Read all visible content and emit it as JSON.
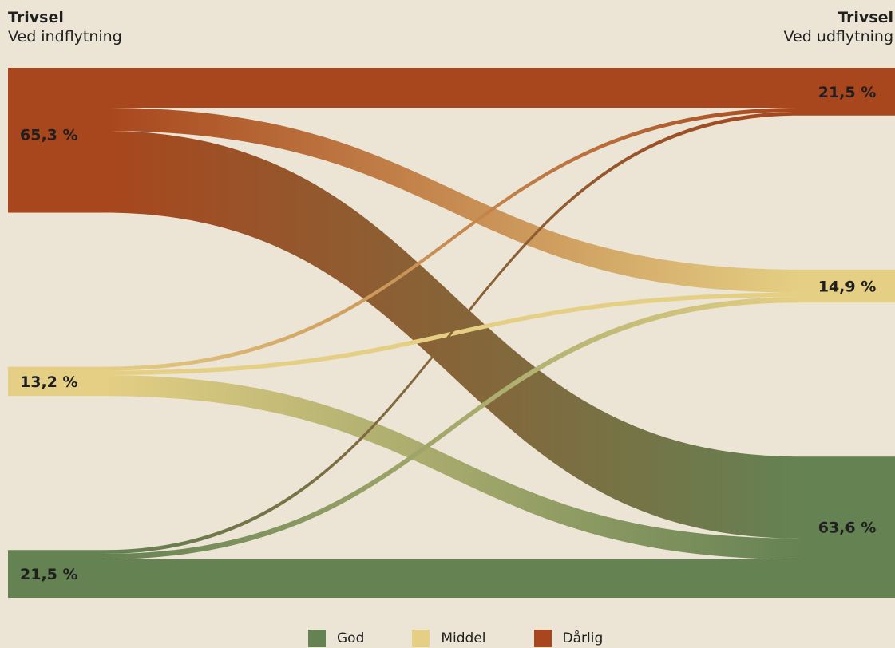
{
  "header": {
    "left_title": "Trivsel",
    "left_subtitle": "Ved indflytning",
    "right_title": "Trivsel",
    "right_subtitle": "Ved udflytning"
  },
  "legend": [
    {
      "label": "God",
      "color": "#658253"
    },
    {
      "label": "Middel",
      "color": "#E4CF84"
    },
    {
      "label": "Dårlig",
      "color": "#A8461D"
    }
  ],
  "chart_data": {
    "type": "sankey",
    "colors": {
      "Dårlig": "#A8461D",
      "Middel": "#E4CF84",
      "God": "#658253"
    },
    "left_nodes": [
      {
        "name": "Dårlig",
        "value": 65.3,
        "label": "65,3 %"
      },
      {
        "name": "Middel",
        "value": 13.2,
        "label": "13,2 %"
      },
      {
        "name": "God",
        "value": 21.5,
        "label": "21,5 %"
      }
    ],
    "right_nodes": [
      {
        "name": "Dårlig",
        "value": 21.5,
        "label": "21,5 %"
      },
      {
        "name": "Middel",
        "value": 14.9,
        "label": "14,9 %"
      },
      {
        "name": "God",
        "value": 63.6,
        "label": "63,6 %"
      }
    ],
    "flows": [
      {
        "from": "Dårlig",
        "to": "Dårlig",
        "value": 18.0
      },
      {
        "from": "Dårlig",
        "to": "Middel",
        "value": 10.4
      },
      {
        "from": "Dårlig",
        "to": "God",
        "value": 36.9
      },
      {
        "from": "Middel",
        "to": "Dårlig",
        "value": 1.8
      },
      {
        "from": "Middel",
        "to": "Middel",
        "value": 2.0
      },
      {
        "from": "Middel",
        "to": "God",
        "value": 9.4
      },
      {
        "from": "God",
        "to": "Dårlig",
        "value": 1.7
      },
      {
        "from": "God",
        "to": "Middel",
        "value": 2.5
      },
      {
        "from": "God",
        "to": "God",
        "value": 17.3
      }
    ]
  }
}
